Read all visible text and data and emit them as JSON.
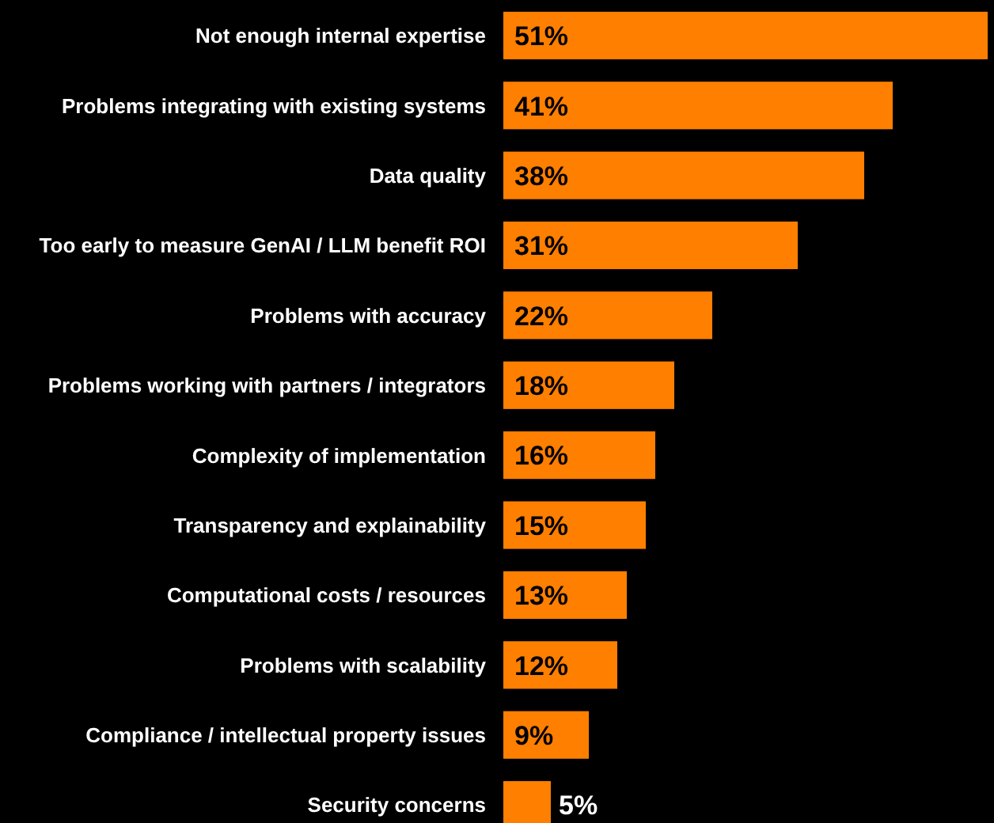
{
  "chart_data": {
    "type": "bar",
    "orientation": "horizontal",
    "categories": [
      "Not enough internal expertise",
      "Problems integrating with existing systems",
      "Data quality",
      "Too early to measure GenAI / LLM benefit ROI",
      "Problems with accuracy",
      "Problems working with partners / integrators",
      "Complexity of implementation",
      "Transparency and explainability",
      "Computational costs / resources",
      "Problems with scalability",
      "Compliance / intellectual property issues",
      "Security concerns"
    ],
    "values": [
      51,
      41,
      38,
      31,
      22,
      18,
      16,
      15,
      13,
      12,
      9,
      5
    ],
    "value_labels": [
      "51%",
      "41%",
      "38%",
      "31%",
      "22%",
      "18%",
      "16%",
      "15%",
      "13%",
      "12%",
      "9%",
      "5%"
    ],
    "color": "#ff7f00",
    "xlim": [
      0,
      51
    ],
    "tick_labels": "y",
    "grid": false
  }
}
